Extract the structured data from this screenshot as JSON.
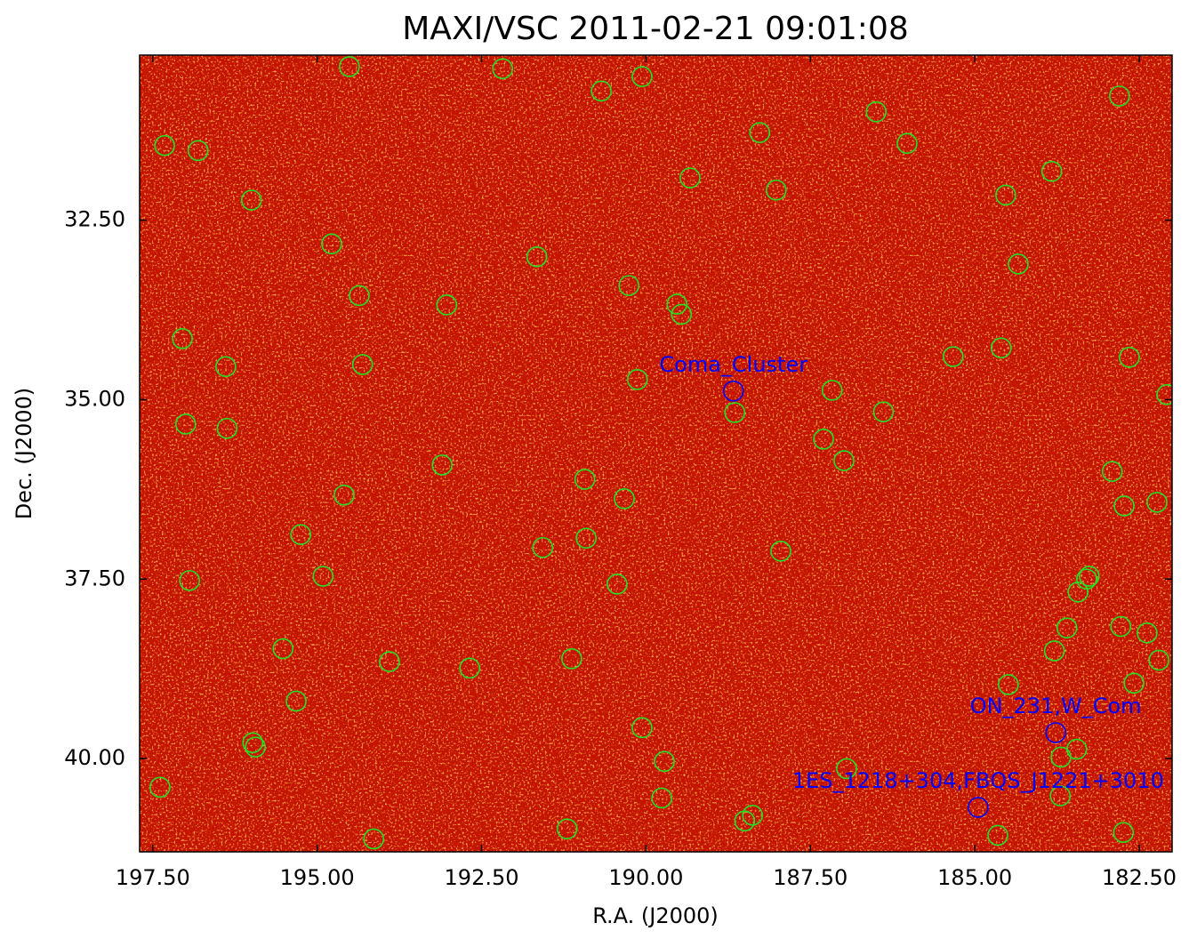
{
  "chart_data": {
    "type": "scatter",
    "title": "MAXI/VSC 2011-02-21 09:01:08",
    "xlabel": "R.A. (J2000)",
    "ylabel": "Dec. (J2000)",
    "xlim": [
      197.7,
      182.0
    ],
    "ylim": [
      30.2,
      41.3
    ],
    "yaxis_inverted": true,
    "xticks": [
      {
        "value": 197.5,
        "label": "197.50"
      },
      {
        "value": 195,
        "label": "195.00"
      },
      {
        "value": 192.5,
        "label": "192.50"
      },
      {
        "value": 190,
        "label": "190.00"
      },
      {
        "value": 187.5,
        "label": "187.50"
      },
      {
        "value": 185,
        "label": "185.00"
      },
      {
        "value": 182.5,
        "label": "182.50"
      }
    ],
    "yticks": [
      {
        "value": 32.5,
        "label": "32.50"
      },
      {
        "value": 35,
        "label": "35.00"
      },
      {
        "value": 37.5,
        "label": "37.50"
      },
      {
        "value": 40,
        "label": "40.00"
      }
    ],
    "series": [
      {
        "color": "#22e022",
        "x": [
          194.51,
          192.18,
          190.68,
          190.06,
          197.32,
          196.81,
          188.27,
          186.5,
          186.03,
          182.8,
          196.0,
          189.33,
          188.02,
          183.83,
          184.53,
          194.78,
          191.66,
          184.34,
          194.36,
          190.26,
          193.03,
          189.53,
          189.46,
          197.05,
          196.39,
          194.31,
          190.13,
          185.33,
          184.6,
          182.65,
          188.65,
          187.17,
          186.39,
          182.08,
          197.0,
          196.37,
          187.3,
          186.99,
          193.1,
          182.91,
          194.59,
          190.93,
          190.33,
          182.73,
          182.23,
          195.25,
          191.57,
          190.91,
          187.95,
          196.94,
          194.91,
          190.44,
          183.26,
          183.3,
          183.43,
          183.6,
          182.78,
          182.38,
          183.79,
          195.52,
          193.9,
          192.68,
          191.13,
          182.2,
          184.49,
          182.58,
          195.32,
          190.06,
          195.98,
          195.94,
          189.72,
          183.69,
          183.45,
          186.95,
          197.39,
          189.76,
          183.7,
          188.38,
          188.5,
          191.2,
          194.14,
          184.65,
          182.74
        ],
        "y": [
          30.36,
          30.39,
          30.7,
          30.5,
          31.46,
          31.53,
          31.28,
          30.99,
          31.43,
          30.77,
          32.22,
          31.91,
          32.08,
          31.82,
          32.15,
          32.83,
          33.01,
          33.11,
          33.55,
          33.41,
          33.68,
          33.67,
          33.81,
          34.15,
          34.54,
          34.51,
          34.72,
          34.4,
          34.28,
          34.41,
          35.18,
          34.87,
          35.17,
          34.93,
          35.34,
          35.4,
          35.55,
          35.85,
          35.91,
          36.0,
          36.33,
          36.11,
          36.38,
          36.48,
          36.43,
          36.88,
          37.06,
          36.93,
          37.11,
          37.52,
          37.46,
          37.57,
          37.46,
          37.5,
          37.68,
          38.18,
          38.16,
          38.25,
          38.5,
          38.47,
          38.65,
          38.74,
          38.61,
          38.63,
          38.97,
          38.95,
          39.2,
          39.57,
          39.78,
          39.84,
          40.04,
          39.98,
          39.87,
          40.14,
          40.4,
          40.55,
          40.52,
          40.79,
          40.87,
          40.98,
          41.12,
          41.07,
          41.03
        ]
      }
    ],
    "sources": {
      "color": "#0000ff",
      "labels": [
        "Coma_Cluster",
        "ON_231,W_Com",
        "1ES_1218+304,FBQS_J1221+3010"
      ],
      "x": [
        188.67,
        183.77,
        184.95
      ],
      "y": [
        34.88,
        39.64,
        40.68
      ]
    }
  }
}
